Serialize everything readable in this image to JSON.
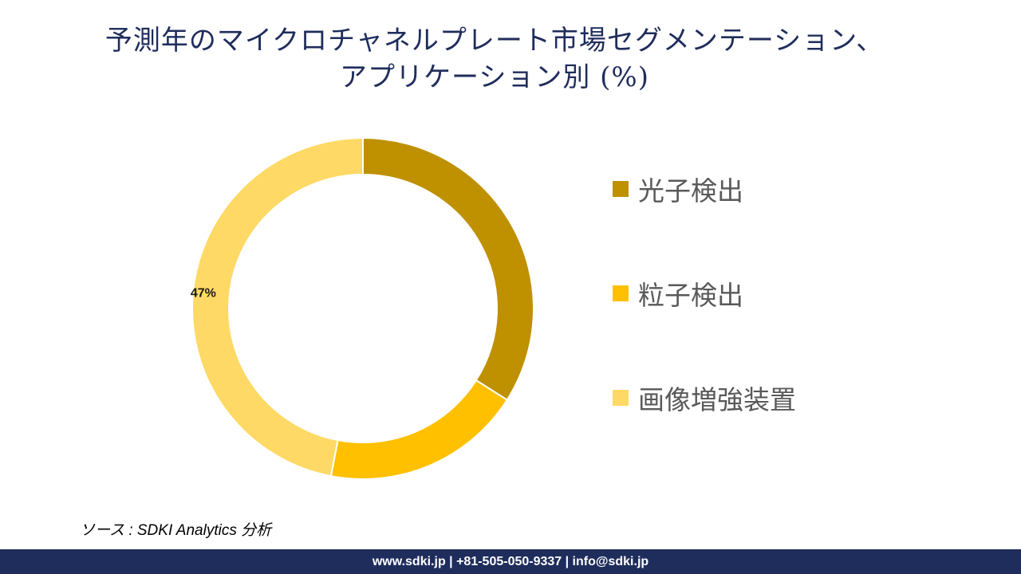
{
  "chart_data": {
    "type": "pie",
    "title_lines": [
      "予測年のマイクロチャネルプレート市場セグメンテーション、",
      "アプリケーション別 (%)"
    ],
    "categories": [
      "光子検出",
      "粒子検出",
      "画像増強装置"
    ],
    "values": [
      34,
      19,
      47
    ],
    "colors": [
      "#bf9000",
      "#ffc000",
      "#ffd966"
    ],
    "data_labels": [
      "",
      "",
      "47%"
    ],
    "legend_position": "right"
  },
  "source": "ソース : SDKI Analytics  分析",
  "footer": "www.sdki.jp | +81-505-050-9337 | info@sdki.jp"
}
